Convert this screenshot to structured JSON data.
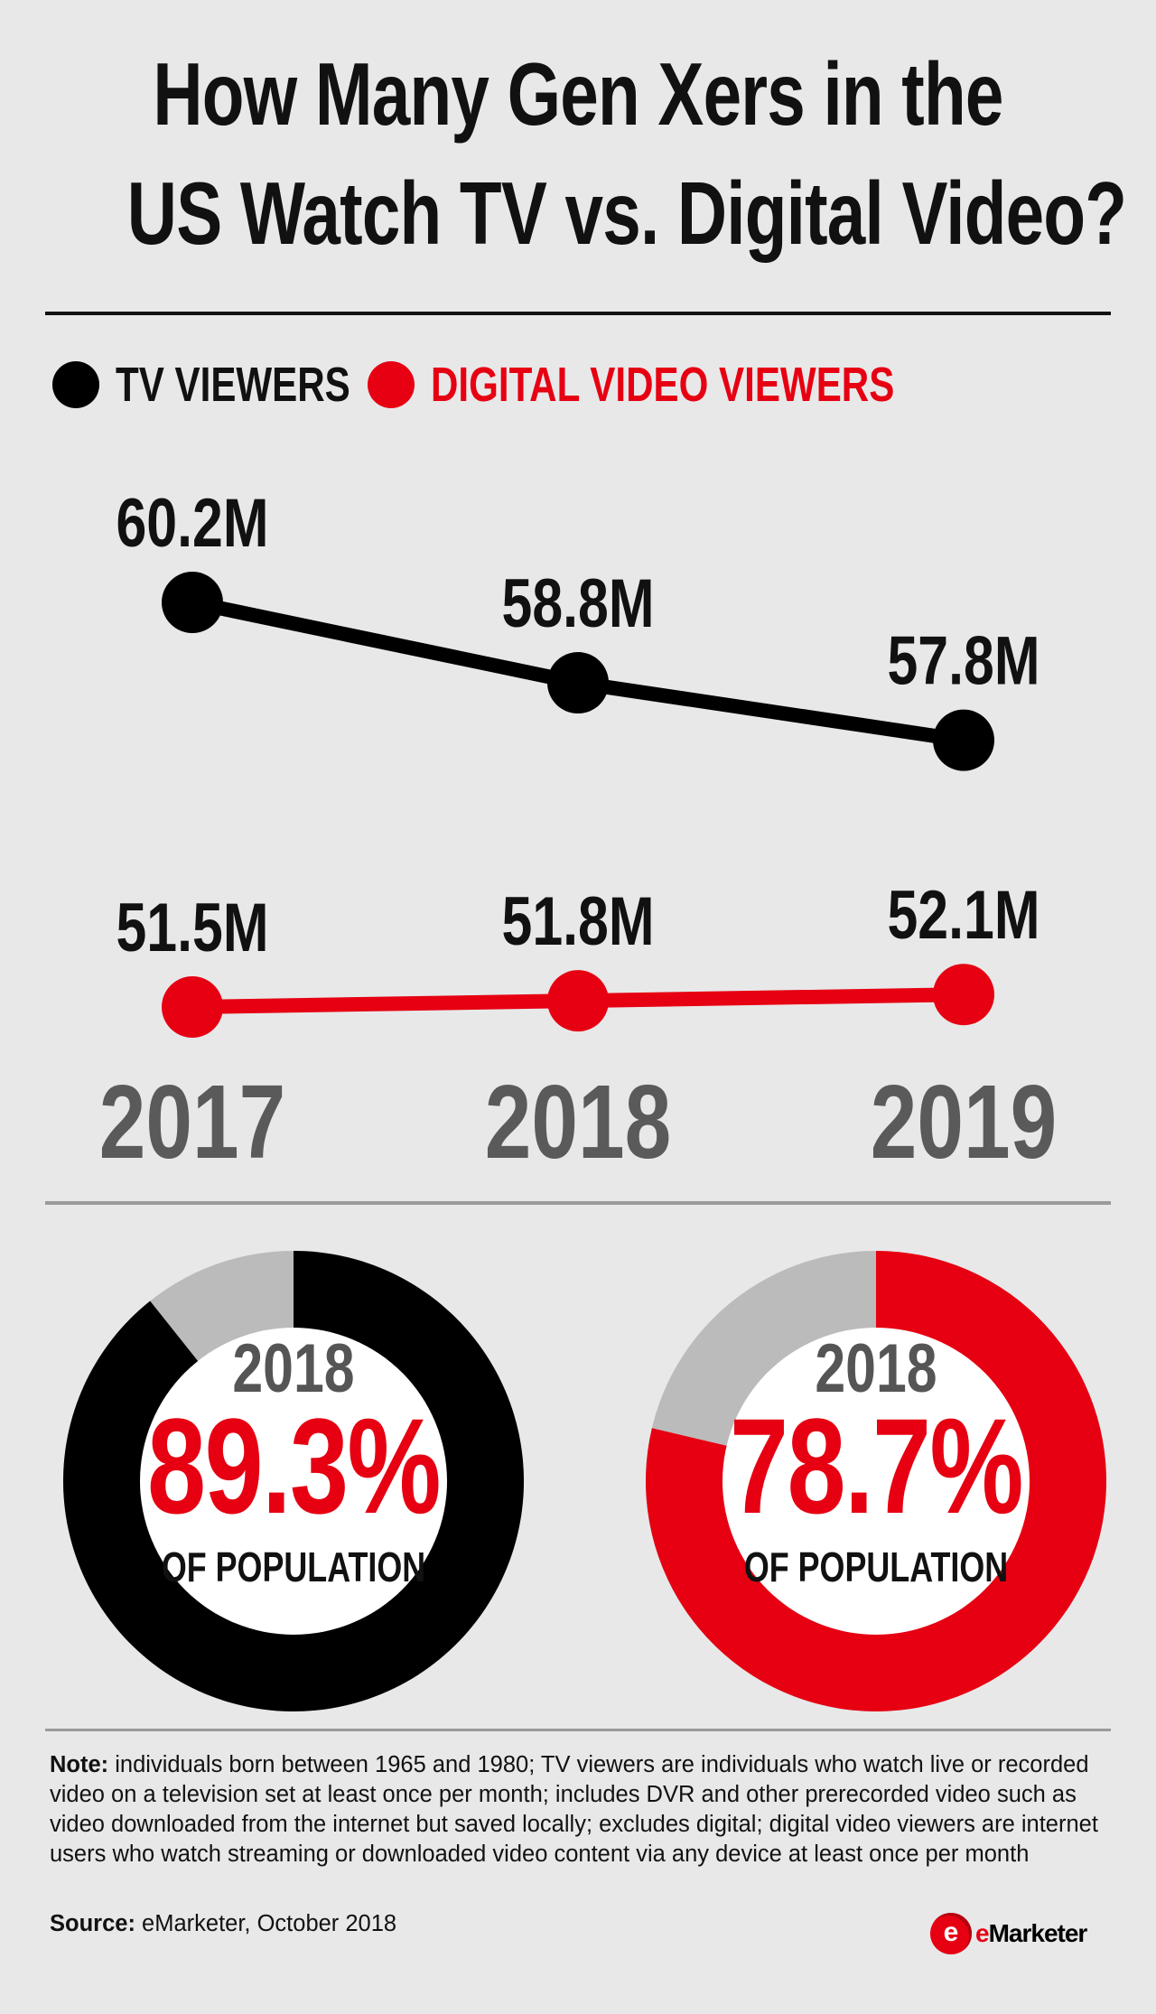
{
  "title": {
    "line1": "How Many Gen Xers in the",
    "line2": "US Watch TV vs. Digital Video?"
  },
  "legend": {
    "tv": "TV VIEWERS",
    "digital": "DIGITAL VIDEO VIEWERS"
  },
  "colors": {
    "tv": "#000000",
    "digital": "#e60012",
    "remainder": "#bbbbbb",
    "year_label": "#5a5a5a",
    "background": "#e8e8e9"
  },
  "chart_data": [
    {
      "type": "line",
      "title": "How Many Gen Xers in the US Watch TV vs. Digital Video?",
      "categories": [
        "2017",
        "2018",
        "2019"
      ],
      "series": [
        {
          "name": "TV VIEWERS",
          "values": [
            60.2,
            58.8,
            57.8
          ],
          "labels": [
            "60.2M",
            "58.8M",
            "57.8M"
          ]
        },
        {
          "name": "DIGITAL VIDEO VIEWERS",
          "values": [
            51.5,
            51.8,
            52.1
          ],
          "labels": [
            "51.5M",
            "51.8M",
            "52.1M"
          ]
        }
      ],
      "unit": "millions"
    },
    {
      "type": "pie",
      "subtype": "donut",
      "series": "TV VIEWERS",
      "year": "2018",
      "value": 89.3,
      "label": "89.3%",
      "caption": "OF POPULATION"
    },
    {
      "type": "pie",
      "subtype": "donut",
      "series": "DIGITAL VIDEO VIEWERS",
      "year": "2018",
      "value": 78.7,
      "label": "78.7%",
      "caption": "OF POPULATION"
    }
  ],
  "note": {
    "label": "Note:",
    "text": " individuals born between 1965 and 1980; TV viewers are individuals who watch live or recorded video on a television set at least once per month; includes DVR and other prerecorded video such as video downloaded from the internet but saved locally; excludes digital; digital video viewers are internet users who watch streaming or downloaded video content via any device at least once per month"
  },
  "source": {
    "label": "Source:",
    "text": " eMarketer, October 2018"
  },
  "brand": {
    "logo_letter": "e",
    "name_prefix": "e",
    "name_rest": "Marketer"
  }
}
